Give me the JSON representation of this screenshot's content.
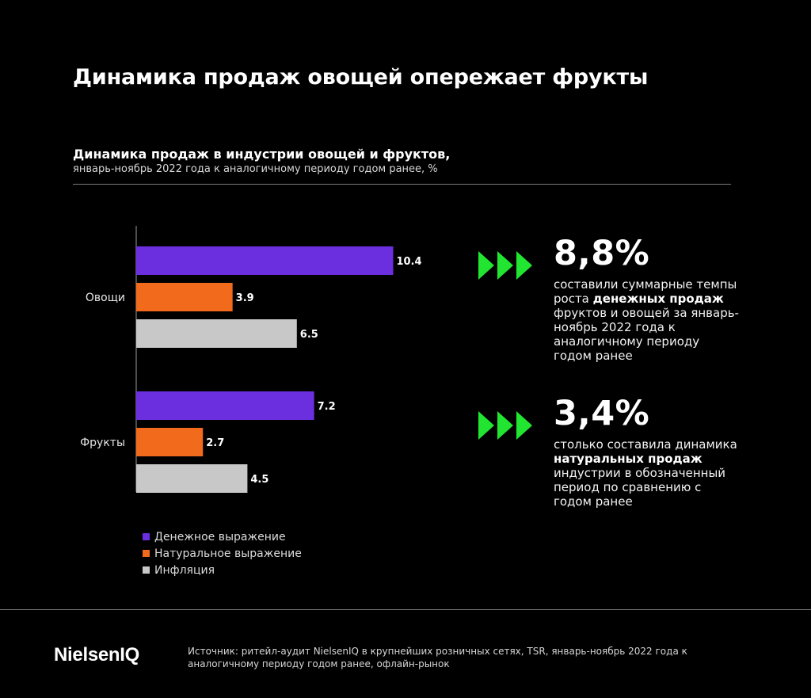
{
  "headline": "Динамика продаж овощей опережает фрукты",
  "subtitle": "Динамика продаж в индустрии овощей и фруктов,",
  "subtitle_note": "январь-ноябрь 2022 года к аналогичному периоду годом ранее, %",
  "colors": {
    "money": "#6b2fe0",
    "natural": "#f26a1b",
    "inflation": "#c8c8c8",
    "accent_green": "#22e532",
    "background": "#000000"
  },
  "chart_data": {
    "type": "bar",
    "orientation": "horizontal",
    "categories": [
      "Овощи",
      "Фрукты"
    ],
    "series": [
      {
        "name": "Денежное выражение",
        "values": [
          10.4,
          7.2
        ]
      },
      {
        "name": "Натуральное выражение",
        "values": [
          3.9,
          2.7
        ]
      },
      {
        "name": "Инфляция",
        "values": [
          6.5,
          4.5
        ]
      }
    ],
    "value_labels": [
      [
        "10.4",
        "3.9",
        "6.5"
      ],
      [
        "7.2",
        "2.7",
        "4.5"
      ]
    ],
    "xlim": [
      0,
      12
    ],
    "grid": false,
    "legend_position": "bottom-left"
  },
  "legend": {
    "items": [
      {
        "label": "Денежное выражение",
        "color": "#6b2fe0"
      },
      {
        "label": "Натуральное выражение",
        "color": "#f26a1b"
      },
      {
        "label": "Инфляция",
        "color": "#c8c8c8"
      }
    ]
  },
  "stats": [
    {
      "value": "8,8%",
      "text_before": "составили суммарные темпы роста ",
      "text_bold": "денежных продаж",
      "text_after": " фруктов и овощей за январь-ноябрь 2022 года к аналогичному периоду годом ранее"
    },
    {
      "value": "3,4%",
      "text_before": "столько составила динамика ",
      "text_bold": "натуральных продаж",
      "text_after": " индустрии в обозначенный период по сравнению с годом ранее"
    }
  ],
  "footer": {
    "logo": "NielsenIQ",
    "source": "Источник: ритейл-аудит NielsenIQ в крупнейших розничных сетях, TSR, январь-ноябрь 2022 года к аналогичному периоду годом ранее, офлайн-рынок"
  }
}
